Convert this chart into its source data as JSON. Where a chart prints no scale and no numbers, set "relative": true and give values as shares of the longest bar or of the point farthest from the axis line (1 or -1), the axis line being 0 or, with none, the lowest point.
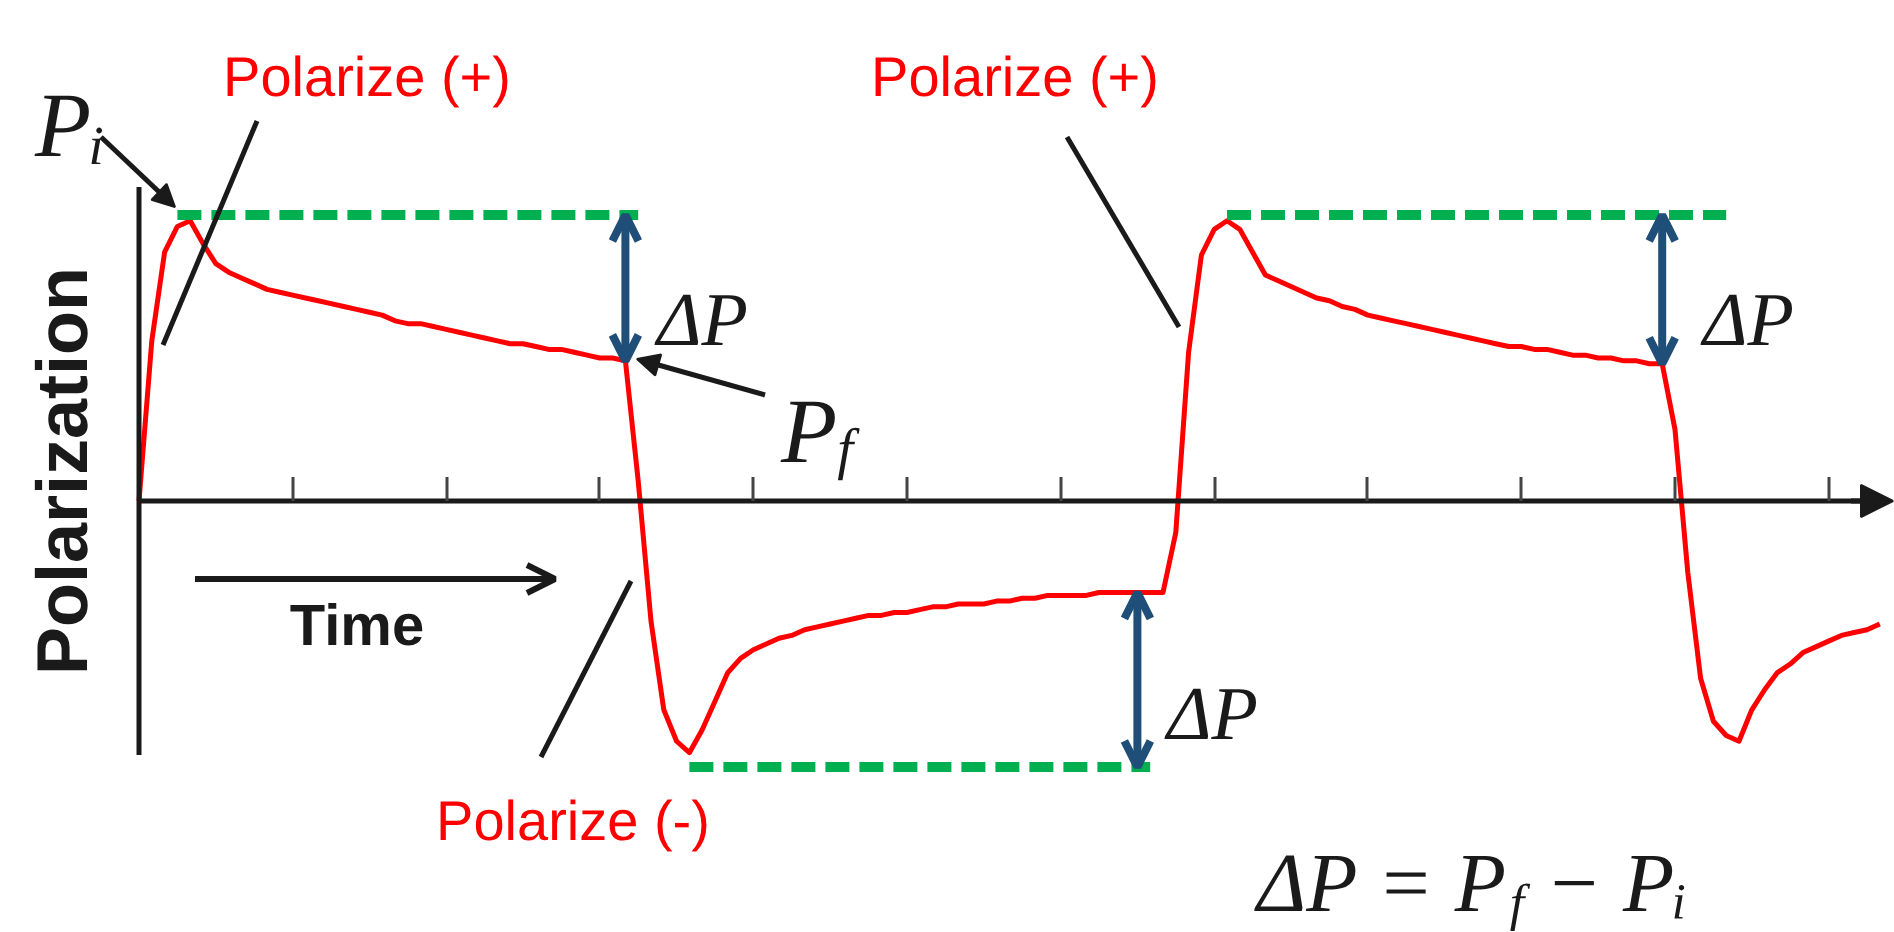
{
  "chart_data": {
    "type": "line",
    "relative": true,
    "xlabel": "Time",
    "ylabel": "Polarization",
    "categories": [
      null,
      null,
      null,
      null,
      null,
      null,
      null,
      null,
      null,
      null,
      null,
      null,
      null,
      null,
      null,
      null,
      null,
      null,
      null,
      null,
      null,
      null,
      null,
      null,
      null,
      null,
      null,
      null,
      null,
      null,
      null,
      null,
      null,
      null,
      null,
      null,
      null,
      null,
      null,
      null,
      null,
      null,
      null,
      null,
      null,
      null,
      null,
      null,
      null,
      null,
      null,
      null,
      null,
      null,
      null,
      null,
      null,
      null,
      null,
      null,
      null,
      null,
      null,
      null,
      null,
      null,
      null,
      null,
      null,
      null,
      null,
      null,
      null,
      null,
      null,
      null,
      null,
      null,
      null,
      null,
      null,
      null,
      null,
      null,
      null,
      null,
      null,
      null,
      null,
      null,
      null,
      null,
      null,
      null,
      null,
      null,
      null,
      null,
      null,
      null,
      null,
      null,
      null,
      null,
      null,
      null,
      null,
      null,
      null,
      null,
      null,
      null,
      null,
      null,
      null,
      null,
      null,
      null,
      null,
      null,
      null,
      null,
      null,
      null,
      null,
      null,
      null,
      null,
      null,
      null,
      null,
      null,
      null,
      null,
      null,
      null,
      null
    ],
    "series": [
      {
        "color": "#ff0000",
        "line_style": "solid",
        "values": [
          0,
          0.56,
          0.87,
          0.96,
          0.98,
          0.9,
          0.83,
          0.8,
          0.78,
          0.76,
          0.74,
          0.73,
          0.72,
          0.71,
          0.7,
          0.69,
          0.68,
          0.67,
          0.66,
          0.65,
          0.63,
          0.62,
          0.62,
          0.61,
          0.6,
          0.59,
          0.58,
          0.57,
          0.56,
          0.55,
          0.55,
          0.54,
          0.53,
          0.53,
          0.52,
          0.51,
          0.5,
          0.5,
          0.49,
          0.07,
          -0.42,
          -0.73,
          -0.84,
          -0.88,
          -0.8,
          -0.7,
          -0.6,
          -0.55,
          -0.52,
          -0.5,
          -0.48,
          -0.47,
          -0.45,
          -0.44,
          -0.43,
          -0.42,
          -0.41,
          -0.4,
          -0.4,
          -0.39,
          -0.39,
          -0.38,
          -0.37,
          -0.37,
          -0.36,
          -0.36,
          -0.36,
          -0.35,
          -0.35,
          -0.34,
          -0.34,
          -0.33,
          -0.33,
          -0.33,
          -0.33,
          -0.32,
          -0.32,
          -0.32,
          -0.32,
          -0.32,
          -0.32,
          -0.11,
          0.52,
          0.86,
          0.95,
          0.98,
          0.95,
          0.87,
          0.79,
          0.77,
          0.75,
          0.73,
          0.71,
          0.7,
          0.68,
          0.67,
          0.65,
          0.64,
          0.63,
          0.62,
          0.61,
          0.6,
          0.59,
          0.58,
          0.57,
          0.56,
          0.55,
          0.54,
          0.54,
          0.53,
          0.53,
          0.52,
          0.51,
          0.51,
          0.5,
          0.5,
          0.49,
          0.49,
          0.48,
          0.48,
          0.25,
          -0.25,
          -0.62,
          -0.77,
          -0.82,
          -0.84,
          -0.73,
          -0.66,
          -0.6,
          -0.57,
          -0.53,
          -0.51,
          -0.49,
          -0.47,
          -0.46,
          -0.45,
          -0.43
        ]
      },
      {
        "color": "#00b050",
        "line_style": "dashed",
        "values": [
          null,
          null,
          null,
          1,
          1,
          1,
          1,
          1,
          1,
          1,
          1,
          1,
          1,
          1,
          1,
          1,
          1,
          1,
          1,
          1,
          1,
          1,
          1,
          1,
          1,
          1,
          1,
          1,
          1,
          1,
          1,
          1,
          1,
          1,
          1,
          1,
          1,
          1,
          1,
          1,
          null,
          null,
          null,
          -0.93,
          -0.93,
          -0.93,
          -0.93,
          -0.93,
          -0.93,
          -0.93,
          -0.93,
          -0.93,
          -0.93,
          -0.93,
          -0.93,
          -0.93,
          -0.93,
          -0.93,
          -0.93,
          -0.93,
          -0.93,
          -0.93,
          -0.93,
          -0.93,
          -0.93,
          -0.93,
          -0.93,
          -0.93,
          -0.93,
          -0.93,
          -0.93,
          -0.93,
          -0.93,
          -0.93,
          -0.93,
          -0.93,
          -0.93,
          -0.93,
          -0.93,
          -0.93,
          null,
          null,
          null,
          null,
          null,
          1,
          1,
          1,
          1,
          1,
          1,
          1,
          1,
          1,
          1,
          1,
          1,
          1,
          1,
          1,
          1,
          1,
          1,
          1,
          1,
          1,
          1,
          1,
          1,
          1,
          1,
          1,
          1,
          1,
          1,
          1,
          1,
          1,
          1,
          1,
          1,
          1,
          1,
          1,
          1,
          null,
          null,
          null,
          null,
          null,
          null,
          null,
          null,
          null,
          null,
          null,
          null
        ]
      }
    ],
    "annotations": [
      "Polarize (+)",
      "Pᵢ",
      "Polarize (+)",
      "ΔP",
      "P$_{f}$",
      "ΔP",
      "ΔP",
      "Polarize (-)",
      "ΔP = P$_{f}$ − Pᵢ"
    ]
  }
}
